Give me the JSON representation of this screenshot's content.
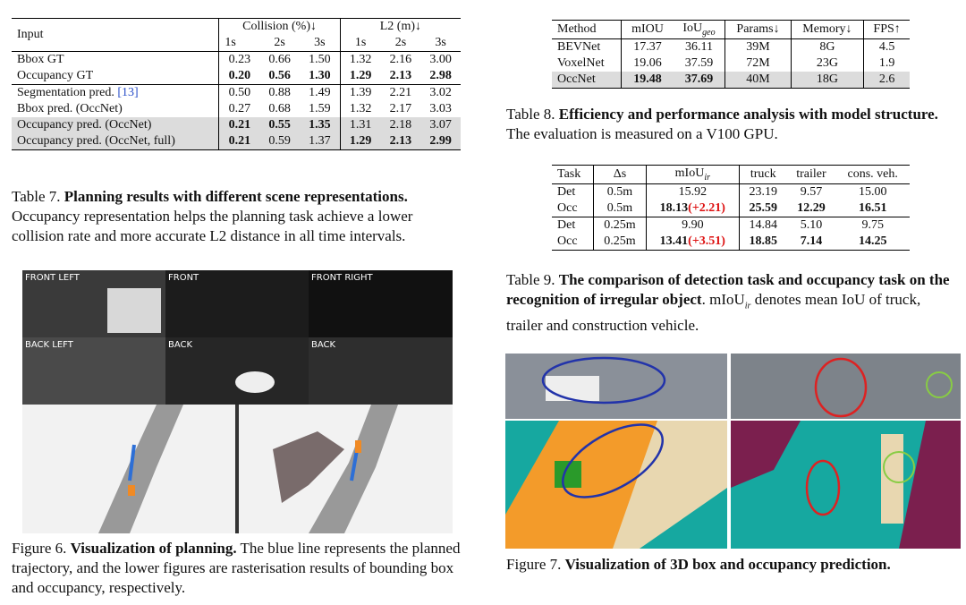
{
  "table7": {
    "header": [
      [
        {
          "text": "Input",
          "rowspan": 2
        },
        {
          "text": "Collision (%)↓",
          "colspan": 3
        },
        {
          "text": "L2 (m)↓",
          "colspan": 3
        }
      ],
      [
        {
          "text": "1s"
        },
        {
          "text": "2s"
        },
        {
          "text": "3s"
        },
        {
          "text": "1s"
        },
        {
          "text": "2s"
        },
        {
          "text": "3s"
        }
      ]
    ],
    "groups": [
      [
        {
          "cells": [
            "Bbox GT",
            "0.23",
            "0.66",
            "1.50",
            "1.32",
            "2.16",
            "3.00"
          ],
          "bold": []
        },
        {
          "cells": [
            "Occupancy GT",
            "0.20",
            "0.56",
            "1.30",
            "1.29",
            "2.13",
            "2.98"
          ],
          "bold": [
            1,
            2,
            3,
            4,
            5,
            6
          ]
        }
      ],
      [
        {
          "cells": [
            "Segmentation pred. ",
            "0.50",
            "0.88",
            "1.49",
            "1.39",
            "2.21",
            "3.02"
          ],
          "bold": [],
          "cite": "[13]"
        },
        {
          "cells": [
            "Bbox pred. (OccNet)",
            "0.27",
            "0.68",
            "1.59",
            "1.32",
            "2.17",
            "3.03"
          ],
          "bold": []
        },
        {
          "cells": [
            "Occupancy pred. (OccNet)",
            "0.21",
            "0.55",
            "1.35",
            "1.31",
            "2.18",
            "3.07"
          ],
          "bold": [
            1,
            2,
            3
          ],
          "shaded": true
        },
        {
          "cells": [
            "Occupancy pred. (OccNet, full)",
            "0.21",
            "0.59",
            "1.37",
            "1.29",
            "2.13",
            "2.99"
          ],
          "bold": [
            1,
            4,
            5,
            6
          ],
          "shaded": true
        }
      ]
    ],
    "caption": [
      {
        "text": "Table 7. "
      },
      {
        "text": "Planning results with different scene representations.",
        "bold": true
      },
      {
        "text": " Occupancy representation helps the planning task achieve a lower collision rate and more accurate L2 distance in all time intervals."
      }
    ]
  },
  "figure6": {
    "cameras": [
      "FRONT LEFT",
      "FRONT",
      "FRONT RIGHT",
      "BACK LEFT",
      "BACK",
      "BACK"
    ],
    "caption": [
      {
        "text": "Figure 6. "
      },
      {
        "text": "Visualization of planning.",
        "bold": true
      },
      {
        "text": " The blue line represents the planned trajectory, and the lower figures are rasterisation results of bounding box and occupancy, respectively."
      }
    ]
  },
  "table8": {
    "header": [
      [
        {
          "text": "Method"
        },
        {
          "text": "mIOU"
        },
        {
          "text": "IoU",
          "sub": "geo"
        },
        {
          "text": "Params↓"
        },
        {
          "text": "Memory↓"
        },
        {
          "text": "FPS↑"
        }
      ]
    ],
    "groups": [
      [
        {
          "cells": [
            "BEVNet",
            "17.37",
            "36.11",
            "39M",
            "8G",
            "4.5"
          ],
          "bold": []
        },
        {
          "cells": [
            "VoxelNet",
            "19.06",
            "37.59",
            "72M",
            "23G",
            "1.9"
          ],
          "bold": []
        },
        {
          "cells": [
            "OccNet",
            "19.48",
            "37.69",
            "40M",
            "18G",
            "2.6"
          ],
          "bold": [
            1,
            2
          ],
          "shaded": true
        }
      ]
    ],
    "caption": [
      {
        "text": "Table 8. "
      },
      {
        "text": "Efficiency and performance analysis with model structure.",
        "bold": true
      },
      {
        "text": " The evaluation is measured on a V100 GPU."
      }
    ]
  },
  "table9": {
    "header": [
      [
        {
          "text": "Task"
        },
        {
          "text": "Δs"
        },
        {
          "text": "mIoU",
          "sub": "ir"
        },
        {
          "text": "truck"
        },
        {
          "text": "trailer"
        },
        {
          "text": "cons. veh."
        }
      ]
    ],
    "groups": [
      [
        {
          "cells": [
            "Det",
            "0.5m",
            "15.92",
            "23.19",
            "9.57",
            "15.00"
          ],
          "bold": []
        },
        {
          "cells": [
            "Occ",
            "0.5m",
            "18.13",
            "25.59",
            "12.29",
            "16.51"
          ],
          "bold": [
            2,
            3,
            4,
            5
          ],
          "delta": "(+2.21)"
        }
      ],
      [
        {
          "cells": [
            "Det",
            "0.25m",
            "9.90",
            "14.84",
            "5.10",
            "9.75"
          ],
          "bold": []
        },
        {
          "cells": [
            "Occ",
            "0.25m",
            "13.41",
            "18.85",
            "7.14",
            "14.25"
          ],
          "bold": [
            2,
            3,
            4,
            5
          ],
          "delta": "(+3.51)"
        }
      ]
    ],
    "caption": [
      {
        "text": "Table 9. "
      },
      {
        "text": "The comparison of detection task and occupancy task on the recognition of irregular object",
        "bold": true
      },
      {
        "text": ".  mIoU"
      },
      {
        "text": "ir",
        "sub": true
      },
      {
        "text": " denotes mean IoU of truck, trailer and construction vehicle."
      }
    ]
  },
  "figure7": {
    "caption": [
      {
        "text": "Figure 7. "
      },
      {
        "text": "Visualization of 3D box and occupancy prediction.",
        "bold": true
      }
    ]
  }
}
